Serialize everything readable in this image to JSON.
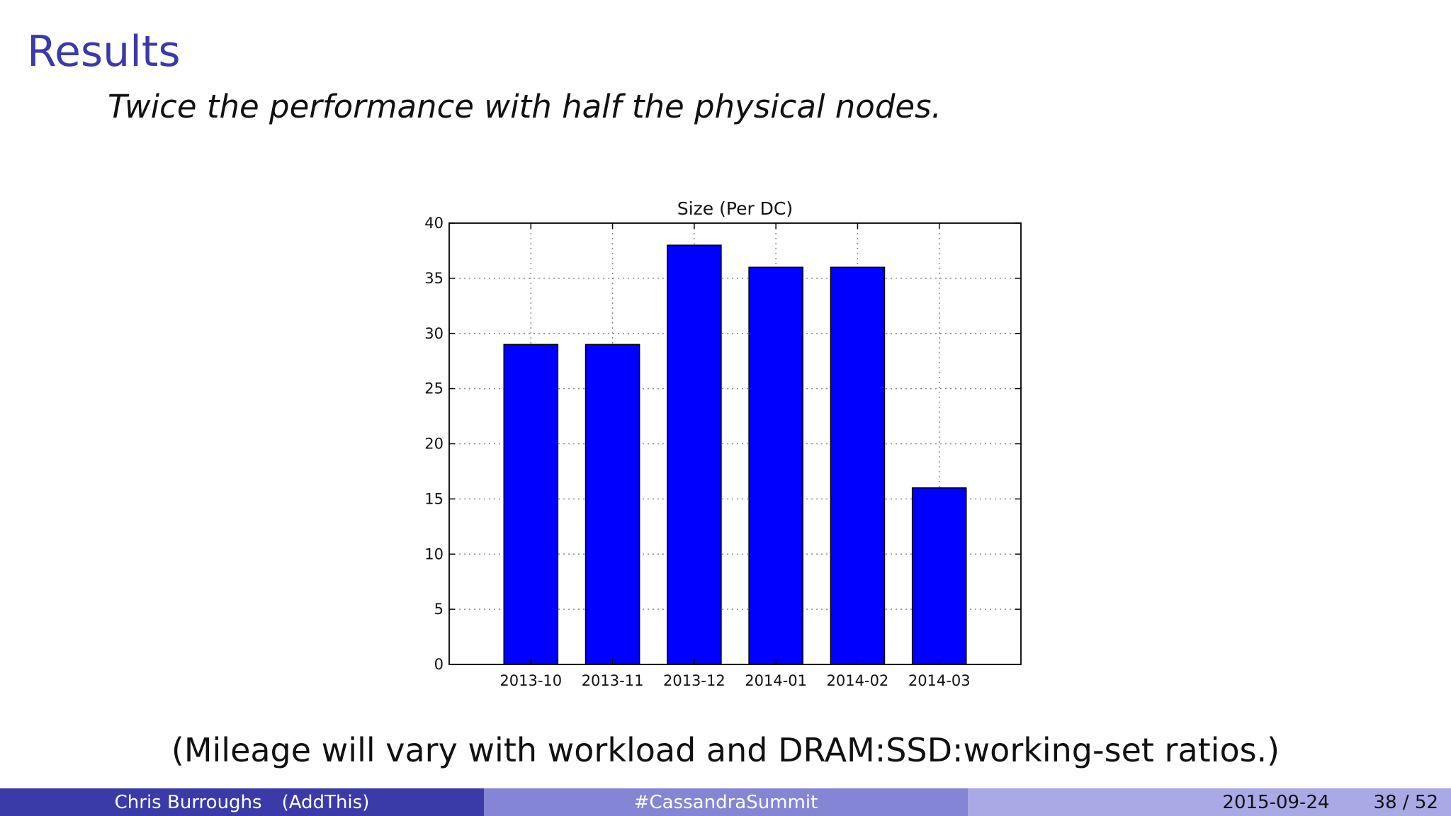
{
  "slide": {
    "title": "Results",
    "subtitle": "Twice the performance with half the physical nodes.",
    "caption": "(Mileage will vary with workload and DRAM:SSD:working-set ratios.)"
  },
  "footer": {
    "author": "Chris Burroughs",
    "institute": "(AddThis)",
    "event": "#CassandraSummit",
    "date": "2015-09-24",
    "page": "38 / 52"
  },
  "colors": {
    "title": "#3a3aa8",
    "bar_fill": "#0000ff",
    "footer_left": "#3a3aa8",
    "footer_mid": "#8585d6",
    "footer_right": "#a9a9e6"
  },
  "chart_data": {
    "type": "bar",
    "title": "Size (Per DC)",
    "xlabel": "",
    "ylabel": "",
    "categories": [
      "2013-10",
      "2013-11",
      "2013-12",
      "2014-01",
      "2014-02",
      "2014-03"
    ],
    "values": [
      29,
      29,
      38,
      36,
      36,
      16
    ],
    "ylim": [
      0,
      40
    ],
    "yticks": [
      0,
      5,
      10,
      15,
      20,
      25,
      30,
      35,
      40
    ],
    "grid": true,
    "legend": "none"
  }
}
